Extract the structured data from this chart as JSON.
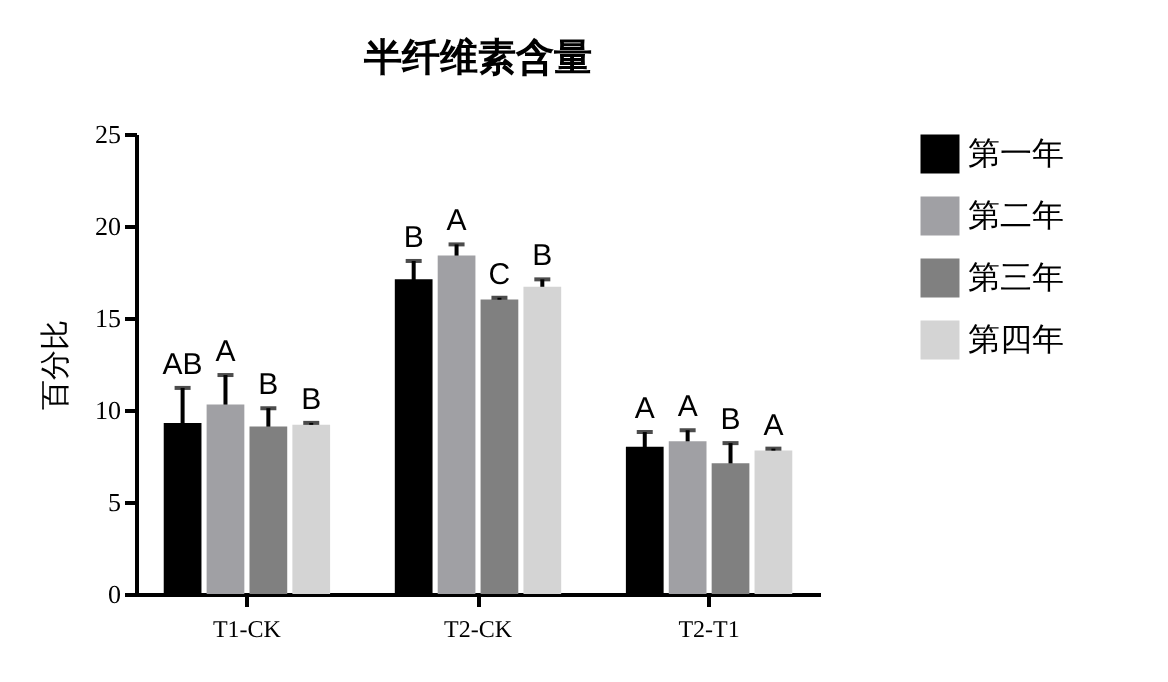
{
  "chart_data": {
    "type": "bar",
    "title": "半纤维素含量",
    "ylabel": "百分比",
    "categories": [
      "T1-CK",
      "T2-CK",
      "T2-T1"
    ],
    "series": [
      {
        "name": "第一年",
        "color": "#000000",
        "values": [
          9.3,
          17.1,
          8.0
        ],
        "errors": [
          1.9,
          1.0,
          0.8
        ],
        "value_labels": [
          "AB",
          "B",
          "A"
        ]
      },
      {
        "name": "第二年",
        "color": "#a0a0a4",
        "values": [
          10.3,
          18.4,
          8.3
        ],
        "errors": [
          1.6,
          0.6,
          0.6
        ],
        "value_labels": [
          "A",
          "A",
          "A"
        ]
      },
      {
        "name": "第三年",
        "color": "#808080",
        "values": [
          9.1,
          16.0,
          7.1
        ],
        "errors": [
          1.0,
          0.1,
          1.1
        ],
        "value_labels": [
          "B",
          "C",
          "B"
        ]
      },
      {
        "name": "第四年",
        "color": "#d4d4d4",
        "values": [
          9.2,
          16.7,
          7.8
        ],
        "errors": [
          0.1,
          0.4,
          0.1
        ],
        "value_labels": [
          "B",
          "B",
          "A"
        ]
      }
    ],
    "ylim": [
      0,
      25
    ],
    "yticks": [
      0,
      5,
      10,
      15,
      20,
      25
    ],
    "grid": false,
    "legend": "right"
  }
}
